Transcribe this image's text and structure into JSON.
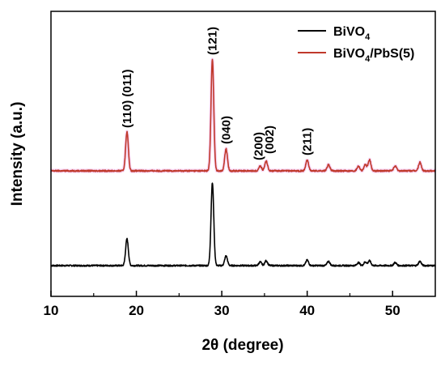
{
  "chart_data": {
    "type": "line",
    "xlabel": "2θ (degree)",
    "ylabel": "Intensity (a.u.)",
    "xlim": [
      10,
      55
    ],
    "xticks": [
      10,
      20,
      30,
      40,
      50
    ],
    "yticks_shown": false,
    "grid": false,
    "legend_position": "top-right",
    "series": [
      {
        "legend_main": "BiVO",
        "legend_sub": "4",
        "legend_tail": "",
        "color": "#000000",
        "baseline": 0,
        "peaks": [
          {
            "x": 18.9,
            "h": 0.22
          },
          {
            "x": 28.9,
            "h": 0.68
          },
          {
            "x": 30.5,
            "h": 0.08
          },
          {
            "x": 34.5,
            "h": 0.03
          },
          {
            "x": 35.2,
            "h": 0.04
          },
          {
            "x": 40.0,
            "h": 0.045
          },
          {
            "x": 42.5,
            "h": 0.035
          },
          {
            "x": 46.0,
            "h": 0.025
          },
          {
            "x": 46.8,
            "h": 0.03
          },
          {
            "x": 47.3,
            "h": 0.04
          },
          {
            "x": 50.3,
            "h": 0.025
          },
          {
            "x": 53.2,
            "h": 0.035
          }
        ]
      },
      {
        "legend_main": "BiVO",
        "legend_sub": "4",
        "legend_tail": "/PbS(5)",
        "color": "#c0392b",
        "baseline": 0.78,
        "peaks": [
          {
            "x": 18.9,
            "h": 0.32
          },
          {
            "x": 28.9,
            "h": 0.92
          },
          {
            "x": 30.5,
            "h": 0.18
          },
          {
            "x": 34.5,
            "h": 0.04
          },
          {
            "x": 35.2,
            "h": 0.08
          },
          {
            "x": 40.0,
            "h": 0.09
          },
          {
            "x": 42.5,
            "h": 0.05
          },
          {
            "x": 46.0,
            "h": 0.04
          },
          {
            "x": 46.8,
            "h": 0.05
          },
          {
            "x": 47.3,
            "h": 0.09
          },
          {
            "x": 50.3,
            "h": 0.04
          },
          {
            "x": 53.2,
            "h": 0.07
          }
        ]
      }
    ],
    "annotations": [
      {
        "text": "(110) (011)",
        "x": 18.9
      },
      {
        "text": "(121)",
        "x": 28.9
      },
      {
        "text": "(040)",
        "x": 30.5
      },
      {
        "text": "(200)",
        "x": 34.3
      },
      {
        "text": "(002)",
        "x": 35.6
      },
      {
        "text": "(211)",
        "x": 40.0
      }
    ]
  }
}
